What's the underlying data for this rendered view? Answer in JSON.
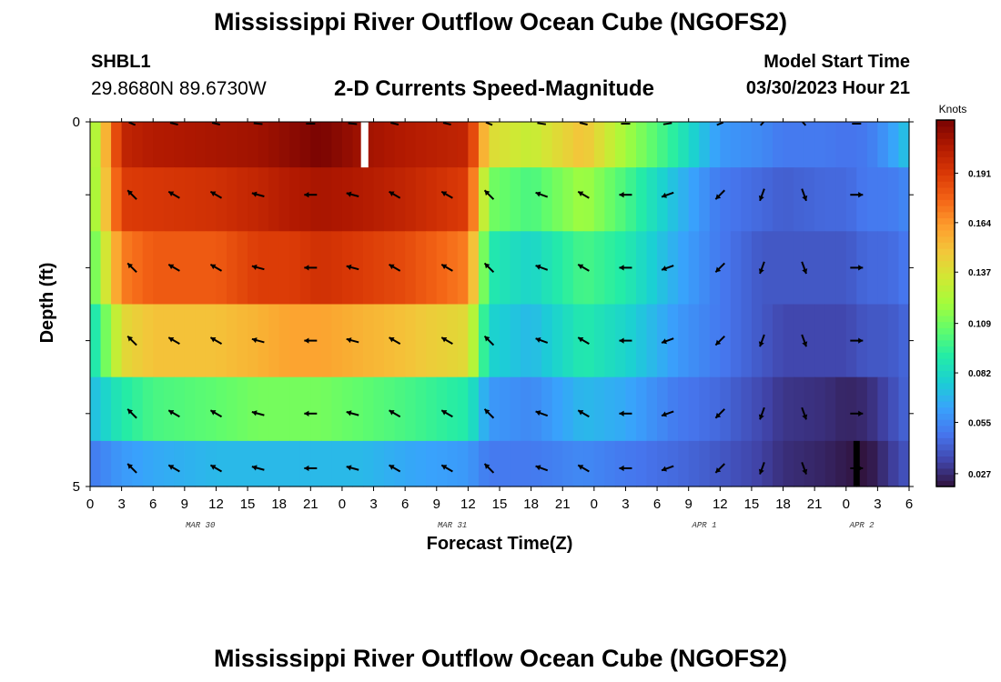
{
  "header": {
    "title": "Mississippi River Outflow Ocean Cube (NGOFS2)",
    "station_id": "SHBL1",
    "station_coords": "29.8680N  89.6730W",
    "plot_title": "2-D Currents Speed-Magnitude",
    "model_start_label": "Model Start Time",
    "model_start_value": "03/30/2023 Hour 21"
  },
  "footer": {
    "title": "Mississippi River Outflow Ocean Cube (NGOFS2)"
  },
  "colors": {
    "colormap": [
      "#30123b",
      "#4145ab",
      "#4675ed",
      "#39a2fc",
      "#1bcfd4",
      "#24eca6",
      "#61fc6c",
      "#a4fc3b",
      "#d1e834",
      "#f3c63a",
      "#fe9b2d",
      "#f36315",
      "#d93806",
      "#b11901",
      "#7a0402"
    ],
    "arrow": "#000000",
    "missing": "#ffffff",
    "below_min": "#000000"
  },
  "chart_data": {
    "type": "heatmap",
    "xlabel": "Forecast Time(Z)",
    "ylabel": "Depth (ft)",
    "x_tick_labels": [
      "0",
      "3",
      "6",
      "9",
      "12",
      "15",
      "18",
      "21",
      "0",
      "3",
      "6",
      "9",
      "12",
      "15",
      "18",
      "21",
      "0",
      "3",
      "6",
      "9",
      "12",
      "15",
      "18",
      "21",
      "0",
      "3",
      "6"
    ],
    "date_labels": [
      "MAR 30",
      "MAR 31",
      "APR 1",
      "APR 2"
    ],
    "y_tick_labels": [
      "0",
      "5"
    ],
    "xlim_hours": [
      0,
      78
    ],
    "ylim_ft": [
      0,
      5
    ],
    "depth_layers_ft": [
      0.25,
      1.0,
      2.0,
      3.0,
      4.0,
      4.75
    ],
    "colorbar": {
      "unit": "Knots",
      "ticks": [
        0.027,
        0.055,
        0.082,
        0.109,
        0.137,
        0.164,
        0.191
      ],
      "range": [
        0.02,
        0.22
      ]
    },
    "speed_keyframes_hours": [
      0,
      3,
      6,
      12,
      16,
      19,
      22,
      26,
      30,
      36,
      38,
      42,
      47,
      51,
      56,
      60,
      64,
      66,
      70,
      72,
      74,
      76,
      78
    ],
    "speed_keyframes_knots": [
      [
        0.11,
        0.2,
        0.205,
        0.208,
        0.21,
        0.215,
        0.22,
        0.21,
        0.205,
        0.2,
        0.14,
        0.13,
        0.15,
        0.12,
        0.09,
        0.06,
        0.055,
        0.05,
        0.05,
        0.048,
        0.05,
        0.06,
        0.075
      ],
      [
        0.11,
        0.19,
        0.192,
        0.195,
        0.2,
        0.205,
        0.208,
        0.205,
        0.2,
        0.19,
        0.11,
        0.1,
        0.12,
        0.1,
        0.07,
        0.05,
        0.045,
        0.042,
        0.045,
        0.045,
        0.05,
        0.05,
        0.055
      ],
      [
        0.1,
        0.17,
        0.18,
        0.18,
        0.19,
        0.19,
        0.195,
        0.19,
        0.185,
        0.17,
        0.09,
        0.08,
        0.1,
        0.09,
        0.065,
        0.05,
        0.04,
        0.04,
        0.04,
        0.04,
        0.045,
        0.045,
        0.05
      ],
      [
        0.08,
        0.14,
        0.15,
        0.15,
        0.155,
        0.16,
        0.16,
        0.155,
        0.15,
        0.14,
        0.08,
        0.07,
        0.09,
        0.08,
        0.06,
        0.05,
        0.04,
        0.035,
        0.035,
        0.035,
        0.04,
        0.04,
        0.045
      ],
      [
        0.07,
        0.09,
        0.1,
        0.105,
        0.11,
        0.11,
        0.11,
        0.105,
        0.1,
        0.09,
        0.06,
        0.055,
        0.07,
        0.065,
        0.05,
        0.045,
        0.035,
        0.03,
        0.028,
        0.025,
        0.027,
        0.035,
        0.045
      ],
      [
        0.05,
        0.06,
        0.065,
        0.07,
        0.07,
        0.07,
        0.07,
        0.07,
        0.065,
        0.06,
        0.05,
        0.05,
        0.055,
        0.05,
        0.045,
        0.04,
        0.033,
        0.028,
        0.025,
        0.022,
        0.02,
        0.03,
        0.04
      ]
    ],
    "arrow_times_hours": [
      4,
      8,
      12,
      16,
      21,
      25,
      29,
      34,
      38,
      43,
      47,
      51,
      55,
      60,
      64,
      68,
      73
    ],
    "arrow_directions_deg_math": [
      135,
      150,
      150,
      165,
      180,
      165,
      150,
      150,
      135,
      160,
      150,
      180,
      200,
      225,
      250,
      290,
      0
    ]
  }
}
